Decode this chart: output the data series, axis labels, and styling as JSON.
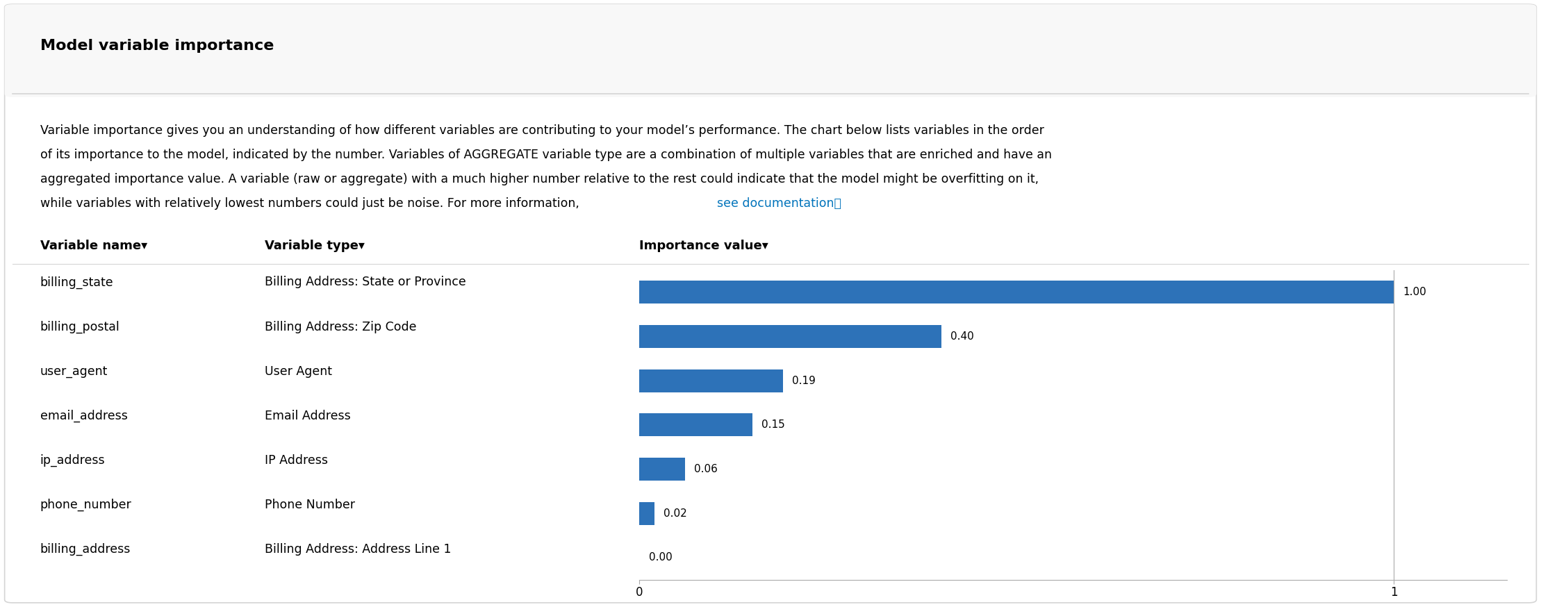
{
  "title": "Model variable importance",
  "desc_line1": "Variable importance gives you an understanding of how different variables are contributing to your model’s performance. The chart below lists variables in the order",
  "desc_line2": "of its importance to the model, indicated by the number. Variables of AGGREGATE variable type are a combination of multiple variables that are enriched and have an",
  "desc_line3": "aggregated importance value. A variable (raw or aggregate) with a much higher number relative to the rest could indicate that the model might be overfitting on it,",
  "desc_line4_pre": "while variables with relatively lowest numbers could just be noise. For more information, ",
  "desc_line4_link": "see documentation⧉",
  "col_headers": [
    "Variable name▾",
    "Variable type▾",
    "Importance value▾"
  ],
  "variable_names": [
    "billing_state",
    "billing_postal",
    "user_agent",
    "email_address",
    "ip_address",
    "phone_number",
    "billing_address"
  ],
  "variable_types": [
    "Billing Address: State or Province",
    "Billing Address: Zip Code",
    "User Agent",
    "Email Address",
    "IP Address",
    "Phone Number",
    "Billing Address: Address Line 1"
  ],
  "importance_values": [
    1.0,
    0.4,
    0.19,
    0.15,
    0.06,
    0.02,
    0.0
  ],
  "importance_labels": [
    "1.00",
    "0.40",
    "0.19",
    "0.15",
    "0.06",
    "0.02",
    "0.00"
  ],
  "bar_color": "#2d72b8",
  "background_color": "#ffffff",
  "border_color": "#d5d5d5",
  "text_color": "#000000",
  "link_color": "#0073bb",
  "title_fontsize": 16,
  "body_fontsize": 12.5,
  "header_fontsize": 13,
  "row_fontsize": 12.5
}
